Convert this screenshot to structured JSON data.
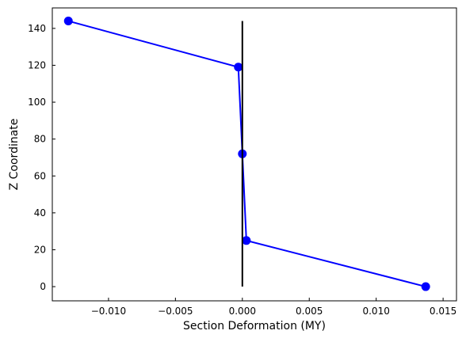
{
  "chart_data": {
    "type": "line",
    "xlabel": "Section Deformation (MY)",
    "ylabel": "Z Coordinate",
    "series": [
      {
        "color": "#0000ff",
        "marker": true,
        "x": [
          -0.013,
          -0.0003,
          0.0,
          0.0003,
          0.0137
        ],
        "values": [
          144,
          119,
          72,
          25,
          0
        ]
      },
      {
        "color": "#000000",
        "marker": false,
        "x": [
          0,
          0
        ],
        "values": [
          0,
          144
        ]
      }
    ],
    "xlim": [
      -0.0142,
      0.016
    ],
    "ylim": [
      -7.7,
      151.1
    ],
    "xticks": [
      {
        "value": -0.01,
        "label": "−0.010"
      },
      {
        "value": -0.005,
        "label": "−0.005"
      },
      {
        "value": 0,
        "label": "0.000"
      },
      {
        "value": 0.005,
        "label": "0.005"
      },
      {
        "value": 0.01,
        "label": "0.010"
      },
      {
        "value": 0.015,
        "label": "0.015"
      }
    ],
    "yticks": [
      0,
      20,
      40,
      60,
      80,
      100,
      120,
      140
    ],
    "grid": false
  }
}
